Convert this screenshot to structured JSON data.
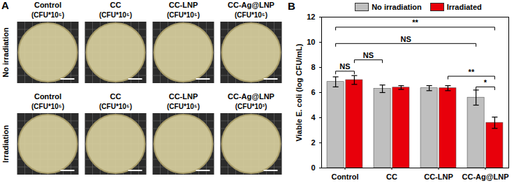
{
  "panel_a": {
    "title": "A",
    "rows": [
      {
        "label": "No irradiation",
        "plates": [
          {
            "name": "Control",
            "unit": "(CFU*10⁵)"
          },
          {
            "name": "CC",
            "unit": "(CFU*10⁵)"
          },
          {
            "name": "CC-LNP",
            "unit": "(CFU*10⁵)"
          },
          {
            "name": "CC-Ag@LNP",
            "unit": "(CFU*10⁵)"
          }
        ]
      },
      {
        "label": "Irradiation",
        "plates": [
          {
            "name": "Control",
            "unit": "(CFU*10⁵)"
          },
          {
            "name": "CC",
            "unit": "(CFU*10⁵)"
          },
          {
            "name": "CC-LNP",
            "unit": "(CFU*10⁵)"
          },
          {
            "name": "CC-Ag@LNP",
            "unit": "(CFU*10³)"
          }
        ]
      }
    ]
  },
  "chart_data": {
    "type": "bar",
    "title": "B",
    "categories": [
      "Control",
      "CC",
      "CC-LNP",
      "CC-Ag@LNP"
    ],
    "series": [
      {
        "name": "No irradiation",
        "color": "#bfbfbf",
        "values": [
          6.85,
          6.3,
          6.35,
          5.6
        ],
        "errors": [
          0.4,
          0.3,
          0.2,
          0.6
        ]
      },
      {
        "name": "Irradiated",
        "color": "#e8000b",
        "values": [
          7.0,
          6.4,
          6.35,
          3.6
        ],
        "errors": [
          0.35,
          0.15,
          0.2,
          0.45
        ]
      }
    ],
    "ylabel": "Viable E. coli (log CFU/mL)",
    "ylim": [
      0,
      12
    ],
    "yticks": [
      0,
      2,
      4,
      6,
      8,
      10,
      12
    ],
    "legend": "top",
    "significance": [
      {
        "label": "**",
        "from": [
          "Control",
          "No irradiation"
        ],
        "to": [
          "CC-Ag@LNP",
          "Irradiated"
        ],
        "y": 11.2
      },
      {
        "label": "NS",
        "from": [
          "Control",
          "No irradiation"
        ],
        "to": [
          "CC-Ag@LNP",
          "No irradiation"
        ],
        "y": 9.9
      },
      {
        "label": "NS",
        "from": [
          "Control",
          "Irradiated"
        ],
        "to": [
          "CC",
          "No irradiation"
        ],
        "y": 8.6
      },
      {
        "label": "NS",
        "from": [
          "Control",
          "No irradiation"
        ],
        "to": [
          "Control",
          "Irradiated"
        ],
        "y": 7.7
      },
      {
        "label": "**",
        "from": [
          "CC-LNP",
          "Irradiated"
        ],
        "to": [
          "CC-Ag@LNP",
          "Irradiated"
        ],
        "y": 7.3
      },
      {
        "label": "*",
        "from": [
          "CC-Ag@LNP",
          "No irradiation"
        ],
        "to": [
          "CC-Ag@LNP",
          "Irradiated"
        ],
        "y": 6.45
      }
    ]
  }
}
